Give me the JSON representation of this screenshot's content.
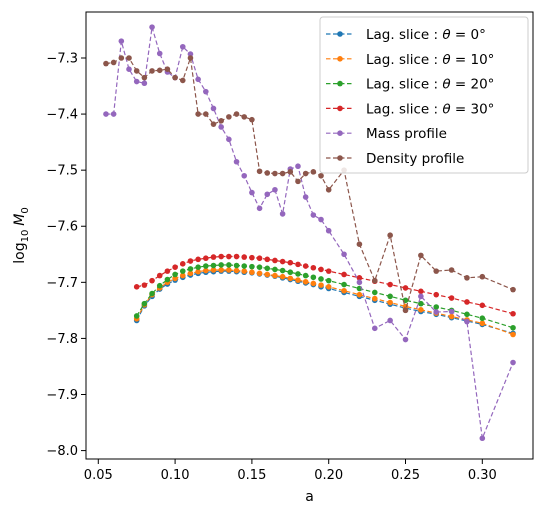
{
  "chart_data": {
    "type": "line",
    "title": "",
    "xlabel": "a",
    "ylabel": "log₁₀ M₀",
    "ylabel_base": "log",
    "ylabel_sub": "10",
    "ylabel_var": "M",
    "ylabel_var_sub": "0",
    "xlim": [
      0.042,
      0.333
    ],
    "ylim": [
      -8.015,
      -7.218
    ],
    "x_ticks": [
      0.05,
      0.1,
      0.15,
      0.2,
      0.25,
      0.3
    ],
    "x_tick_labels": [
      "0.05",
      "0.10",
      "0.15",
      "0.20",
      "0.25",
      "0.30"
    ],
    "y_ticks": [
      -8.0,
      -7.9,
      -7.8,
      -7.7,
      -7.6,
      -7.5,
      -7.4,
      -7.3
    ],
    "y_tick_labels": [
      "−8.0",
      "−7.9",
      "−7.8",
      "−7.7",
      "−7.6",
      "−7.5",
      "−7.4",
      "−7.3"
    ],
    "grid": false,
    "legend_position": "top-right",
    "series": [
      {
        "name": "Lag. slice : θ = 0°",
        "label_prefix": "Lag. slice : ",
        "label_var": "θ",
        "label_rest": " = 0°",
        "color": "#1f77b4",
        "x": [
          0.075,
          0.08,
          0.085,
          0.09,
          0.095,
          0.1,
          0.105,
          0.11,
          0.115,
          0.12,
          0.125,
          0.13,
          0.135,
          0.14,
          0.145,
          0.15,
          0.155,
          0.16,
          0.165,
          0.17,
          0.175,
          0.18,
          0.185,
          0.19,
          0.195,
          0.2,
          0.21,
          0.22,
          0.23,
          0.24,
          0.25,
          0.26,
          0.27,
          0.28,
          0.29,
          0.3,
          0.32
        ],
        "y": [
          -7.768,
          -7.742,
          -7.725,
          -7.712,
          -7.703,
          -7.696,
          -7.691,
          -7.687,
          -7.684,
          -7.682,
          -7.681,
          -7.68,
          -7.68,
          -7.681,
          -7.682,
          -7.683,
          -7.685,
          -7.687,
          -7.689,
          -7.692,
          -7.695,
          -7.698,
          -7.701,
          -7.704,
          -7.708,
          -7.711,
          -7.718,
          -7.725,
          -7.732,
          -7.739,
          -7.746,
          -7.752,
          -7.757,
          -7.763,
          -7.769,
          -7.775,
          -7.791
        ]
      },
      {
        "name": "Lag. slice : θ = 10°",
        "label_prefix": "Lag. slice : ",
        "label_var": "θ",
        "label_rest": " = 10°",
        "color": "#ff7f0e",
        "x": [
          0.075,
          0.08,
          0.085,
          0.09,
          0.095,
          0.1,
          0.105,
          0.11,
          0.115,
          0.12,
          0.125,
          0.13,
          0.135,
          0.14,
          0.145,
          0.15,
          0.155,
          0.16,
          0.165,
          0.17,
          0.175,
          0.18,
          0.185,
          0.19,
          0.195,
          0.2,
          0.21,
          0.22,
          0.23,
          0.24,
          0.25,
          0.26,
          0.27,
          0.28,
          0.29,
          0.3,
          0.32
        ],
        "y": [
          -7.765,
          -7.74,
          -7.722,
          -7.71,
          -7.7,
          -7.693,
          -7.688,
          -7.684,
          -7.681,
          -7.679,
          -7.678,
          -7.678,
          -7.678,
          -7.679,
          -7.68,
          -7.682,
          -7.684,
          -7.686,
          -7.688,
          -7.69,
          -7.693,
          -7.696,
          -7.699,
          -7.702,
          -7.705,
          -7.708,
          -7.715,
          -7.722,
          -7.729,
          -7.736,
          -7.743,
          -7.749,
          -7.755,
          -7.761,
          -7.767,
          -7.773,
          -7.793
        ]
      },
      {
        "name": "Lag. slice : θ = 20°",
        "label_prefix": "Lag. slice : ",
        "label_var": "θ",
        "label_rest": " = 20°",
        "color": "#2ca02c",
        "x": [
          0.075,
          0.08,
          0.085,
          0.09,
          0.095,
          0.1,
          0.105,
          0.11,
          0.115,
          0.12,
          0.125,
          0.13,
          0.135,
          0.14,
          0.145,
          0.15,
          0.155,
          0.16,
          0.165,
          0.17,
          0.175,
          0.18,
          0.185,
          0.19,
          0.195,
          0.2,
          0.21,
          0.22,
          0.23,
          0.24,
          0.25,
          0.26,
          0.27,
          0.28,
          0.29,
          0.3,
          0.32
        ],
        "y": [
          -7.76,
          -7.738,
          -7.72,
          -7.706,
          -7.695,
          -7.686,
          -7.68,
          -7.676,
          -7.673,
          -7.671,
          -7.67,
          -7.669,
          -7.669,
          -7.67,
          -7.671,
          -7.672,
          -7.673,
          -7.675,
          -7.677,
          -7.679,
          -7.682,
          -7.685,
          -7.688,
          -7.691,
          -7.694,
          -7.697,
          -7.704,
          -7.711,
          -7.718,
          -7.725,
          -7.732,
          -7.738,
          -7.744,
          -7.75,
          -7.757,
          -7.764,
          -7.781
        ]
      },
      {
        "name": "Lag. slice : θ = 30°",
        "label_prefix": "Lag. slice : ",
        "label_var": "θ",
        "label_rest": " = 30°",
        "color": "#d62728",
        "x": [
          0.075,
          0.08,
          0.085,
          0.09,
          0.095,
          0.1,
          0.105,
          0.11,
          0.115,
          0.12,
          0.125,
          0.13,
          0.135,
          0.14,
          0.145,
          0.15,
          0.155,
          0.16,
          0.165,
          0.17,
          0.175,
          0.18,
          0.185,
          0.19,
          0.195,
          0.2,
          0.21,
          0.22,
          0.23,
          0.24,
          0.25,
          0.26,
          0.27,
          0.28,
          0.29,
          0.3,
          0.32
        ],
        "y": [
          -7.708,
          -7.705,
          -7.697,
          -7.688,
          -7.68,
          -7.673,
          -7.667,
          -7.662,
          -7.659,
          -7.657,
          -7.655,
          -7.654,
          -7.654,
          -7.654,
          -7.655,
          -7.656,
          -7.657,
          -7.659,
          -7.661,
          -7.663,
          -7.665,
          -7.668,
          -7.671,
          -7.674,
          -7.677,
          -7.68,
          -7.686,
          -7.692,
          -7.698,
          -7.704,
          -7.71,
          -7.716,
          -7.722,
          -7.728,
          -7.735,
          -7.741,
          -7.756
        ]
      },
      {
        "name": "Mass profile",
        "color": "#9467bd",
        "x": [
          0.055,
          0.06,
          0.065,
          0.07,
          0.075,
          0.08,
          0.085,
          0.09,
          0.095,
          0.1,
          0.105,
          0.11,
          0.115,
          0.12,
          0.125,
          0.13,
          0.135,
          0.14,
          0.145,
          0.15,
          0.155,
          0.16,
          0.165,
          0.17,
          0.175,
          0.18,
          0.185,
          0.19,
          0.195,
          0.2,
          0.21,
          0.22,
          0.23,
          0.24,
          0.25,
          0.26,
          0.27,
          0.28,
          0.29,
          0.3,
          0.32
        ],
        "y": [
          -7.4,
          -7.4,
          -7.27,
          -7.32,
          -7.342,
          -7.345,
          -7.245,
          -7.292,
          -7.325,
          -7.335,
          -7.28,
          -7.293,
          -7.338,
          -7.36,
          -7.39,
          -7.423,
          -7.445,
          -7.485,
          -7.51,
          -7.54,
          -7.568,
          -7.543,
          -7.535,
          -7.578,
          -7.498,
          -7.493,
          -7.548,
          -7.58,
          -7.588,
          -7.608,
          -7.65,
          -7.7,
          -7.782,
          -7.768,
          -7.802,
          -7.725,
          -7.753,
          -7.752,
          -7.77,
          -7.978,
          -7.843
        ]
      },
      {
        "name": "Density profile",
        "color": "#8c564b",
        "x": [
          0.055,
          0.06,
          0.065,
          0.07,
          0.075,
          0.08,
          0.085,
          0.09,
          0.095,
          0.1,
          0.105,
          0.11,
          0.115,
          0.12,
          0.125,
          0.13,
          0.135,
          0.14,
          0.145,
          0.15,
          0.155,
          0.16,
          0.165,
          0.17,
          0.175,
          0.18,
          0.185,
          0.19,
          0.195,
          0.2,
          0.21,
          0.22,
          0.23,
          0.24,
          0.25,
          0.26,
          0.27,
          0.28,
          0.29,
          0.3,
          0.32
        ],
        "y": [
          -7.31,
          -7.308,
          -7.3,
          -7.3,
          -7.323,
          -7.335,
          -7.323,
          -7.322,
          -7.32,
          -7.335,
          -7.34,
          -7.3,
          -7.4,
          -7.4,
          -7.418,
          -7.412,
          -7.405,
          -7.4,
          -7.405,
          -7.41,
          -7.502,
          -7.505,
          -7.506,
          -7.506,
          -7.503,
          -7.52,
          -7.506,
          -7.503,
          -7.51,
          -7.535,
          -7.5,
          -7.632,
          -7.697,
          -7.616,
          -7.75,
          -7.652,
          -7.68,
          -7.678,
          -7.692,
          -7.69,
          -7.713
        ]
      }
    ]
  }
}
